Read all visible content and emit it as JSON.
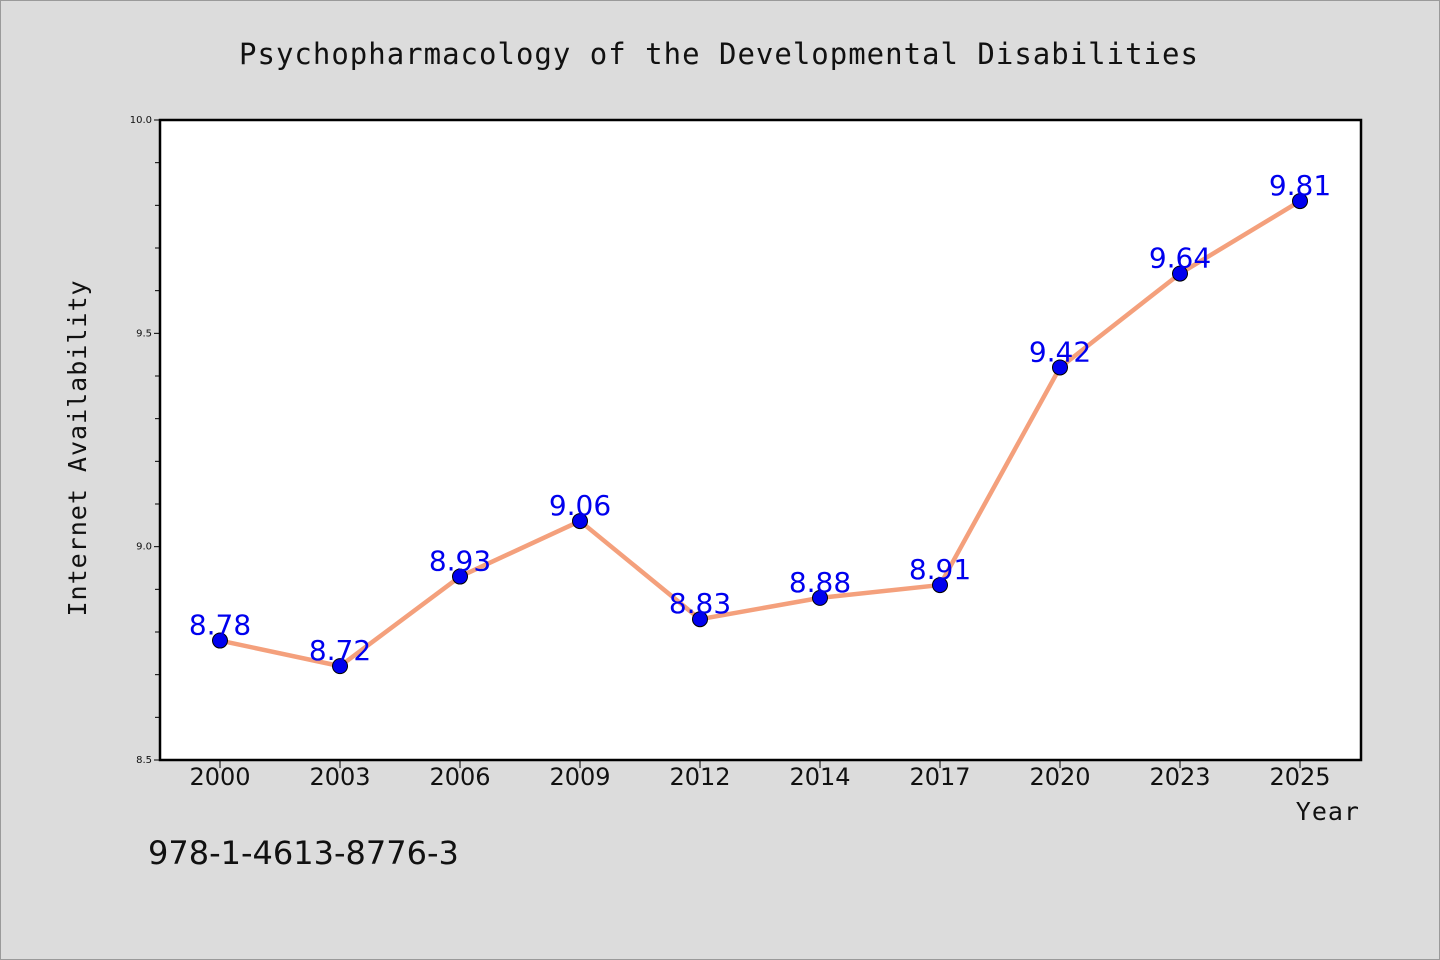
{
  "chart_data": {
    "type": "line",
    "title": "Psychopharmacology of the Developmental Disabilities",
    "xlabel": "Year",
    "ylabel": "Internet Availability",
    "categories": [
      "2000",
      "2003",
      "2006",
      "2009",
      "2012",
      "2014",
      "2017",
      "2020",
      "2023",
      "2025"
    ],
    "values": [
      8.78,
      8.72,
      8.93,
      9.06,
      8.83,
      8.88,
      8.91,
      9.42,
      9.64,
      9.81
    ],
    "data_labels": [
      "8.78",
      "8.72",
      "8.93",
      "9.06",
      "8.83",
      "8.88",
      "8.91",
      "9.42",
      "9.64",
      "9.81"
    ],
    "ylim": [
      8.5,
      10.0
    ],
    "yticks": [
      "8.5",
      "9.0",
      "9.5",
      "10.0"
    ],
    "grid": false,
    "line_color": "#f4a07c",
    "marker_color": "#0000ee",
    "label_color": "#0000ee"
  },
  "annotation": {
    "isbn": "978-1-4613-8776-3"
  }
}
